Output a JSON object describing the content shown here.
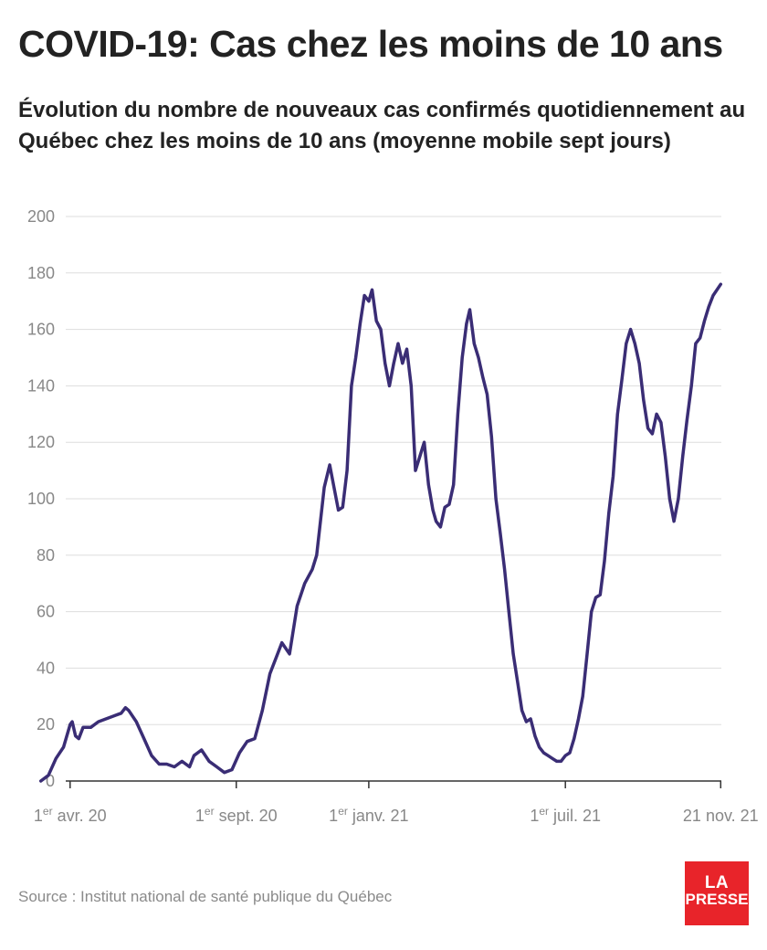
{
  "title": "COVID-19: Cas chez les moins de 10 ans",
  "subtitle": "Évolution du nombre de nouveaux cas confirmés quotidiennement au Québec chez les moins de 10 ans (moyenne mobile sept jours)",
  "source": "Source : Institut national de santé publique du Québec",
  "logo": {
    "line1": "LA",
    "line2": "PRESSE"
  },
  "colors": {
    "line": "#3a2d75",
    "grid": "#dddddd",
    "axis": "#333333",
    "tick_label": "#888888",
    "logo_bg": "#e8242a"
  },
  "chart_data": {
    "type": "line",
    "title": "COVID-19: Cas chez les moins de 10 ans",
    "xlabel": "",
    "ylabel": "",
    "ylim": [
      0,
      200
    ],
    "yticks": [
      0,
      20,
      40,
      60,
      80,
      100,
      120,
      140,
      160,
      180,
      200
    ],
    "xlim": [
      "2020-02-20",
      "2021-11-30"
    ],
    "grid": true,
    "xticks": [
      {
        "date": "2020-04-01",
        "sup": "er",
        "pre": "1",
        "post": " avr. 20"
      },
      {
        "date": "2020-09-01",
        "sup": "er",
        "pre": "1",
        "post": " sept. 20"
      },
      {
        "date": "2021-01-01",
        "sup": "er",
        "pre": "1",
        "post": " janv. 21"
      },
      {
        "date": "2021-07-01",
        "sup": "er",
        "pre": "1",
        "post": " juil. 21"
      },
      {
        "date": "2021-11-21",
        "sup": "",
        "pre": "",
        "post": "21 nov. 21"
      }
    ],
    "series": [
      {
        "values": [
          [
            "2020-03-05",
            0
          ],
          [
            "2020-03-12",
            2
          ],
          [
            "2020-03-19",
            8
          ],
          [
            "2020-03-26",
            12
          ],
          [
            "2020-04-01",
            20
          ],
          [
            "2020-04-03",
            21
          ],
          [
            "2020-04-06",
            16
          ],
          [
            "2020-04-09",
            15
          ],
          [
            "2020-04-13",
            19
          ],
          [
            "2020-04-20",
            19
          ],
          [
            "2020-04-27",
            21
          ],
          [
            "2020-05-04",
            22
          ],
          [
            "2020-05-11",
            23
          ],
          [
            "2020-05-18",
            24
          ],
          [
            "2020-05-22",
            26
          ],
          [
            "2020-05-25",
            25
          ],
          [
            "2020-06-01",
            21
          ],
          [
            "2020-06-08",
            15
          ],
          [
            "2020-06-15",
            9
          ],
          [
            "2020-06-22",
            6
          ],
          [
            "2020-06-29",
            6
          ],
          [
            "2020-07-06",
            5
          ],
          [
            "2020-07-13",
            7
          ],
          [
            "2020-07-20",
            5
          ],
          [
            "2020-07-24",
            9
          ],
          [
            "2020-07-31",
            11
          ],
          [
            "2020-08-07",
            7
          ],
          [
            "2020-08-14",
            5
          ],
          [
            "2020-08-21",
            3
          ],
          [
            "2020-08-28",
            4
          ],
          [
            "2020-09-04",
            10
          ],
          [
            "2020-09-11",
            14
          ],
          [
            "2020-09-18",
            15
          ],
          [
            "2020-09-25",
            25
          ],
          [
            "2020-10-02",
            38
          ],
          [
            "2020-10-09",
            45
          ],
          [
            "2020-10-13",
            49
          ],
          [
            "2020-10-20",
            45
          ],
          [
            "2020-10-27",
            62
          ],
          [
            "2020-11-03",
            70
          ],
          [
            "2020-11-10",
            75
          ],
          [
            "2020-11-14",
            80
          ],
          [
            "2020-11-21",
            104
          ],
          [
            "2020-11-26",
            112
          ],
          [
            "2020-11-30",
            104
          ],
          [
            "2020-12-04",
            96
          ],
          [
            "2020-12-08",
            97
          ],
          [
            "2020-12-12",
            110
          ],
          [
            "2020-12-16",
            140
          ],
          [
            "2020-12-20",
            150
          ],
          [
            "2020-12-24",
            162
          ],
          [
            "2020-12-28",
            172
          ],
          [
            "2021-01-01",
            170
          ],
          [
            "2021-01-04",
            174
          ],
          [
            "2021-01-08",
            163
          ],
          [
            "2021-01-12",
            160
          ],
          [
            "2021-01-16",
            148
          ],
          [
            "2021-01-20",
            140
          ],
          [
            "2021-01-24",
            148
          ],
          [
            "2021-01-28",
            155
          ],
          [
            "2021-02-01",
            148
          ],
          [
            "2021-02-05",
            153
          ],
          [
            "2021-02-09",
            140
          ],
          [
            "2021-02-13",
            110
          ],
          [
            "2021-02-17",
            115
          ],
          [
            "2021-02-21",
            120
          ],
          [
            "2021-02-25",
            105
          ],
          [
            "2021-03-01",
            96
          ],
          [
            "2021-03-04",
            92
          ],
          [
            "2021-03-08",
            90
          ],
          [
            "2021-03-12",
            97
          ],
          [
            "2021-03-16",
            98
          ],
          [
            "2021-03-20",
            105
          ],
          [
            "2021-03-24",
            130
          ],
          [
            "2021-03-28",
            150
          ],
          [
            "2021-04-01",
            162
          ],
          [
            "2021-04-04",
            167
          ],
          [
            "2021-04-08",
            155
          ],
          [
            "2021-04-12",
            150
          ],
          [
            "2021-04-16",
            143
          ],
          [
            "2021-04-20",
            137
          ],
          [
            "2021-04-24",
            122
          ],
          [
            "2021-04-28",
            100
          ],
          [
            "2021-05-02",
            88
          ],
          [
            "2021-05-06",
            75
          ],
          [
            "2021-05-10",
            60
          ],
          [
            "2021-05-14",
            45
          ],
          [
            "2021-05-18",
            35
          ],
          [
            "2021-05-22",
            25
          ],
          [
            "2021-05-26",
            21
          ],
          [
            "2021-05-30",
            22
          ],
          [
            "2021-06-03",
            16
          ],
          [
            "2021-06-07",
            12
          ],
          [
            "2021-06-11",
            10
          ],
          [
            "2021-06-15",
            9
          ],
          [
            "2021-06-19",
            8
          ],
          [
            "2021-06-23",
            7
          ],
          [
            "2021-06-27",
            7
          ],
          [
            "2021-07-01",
            9
          ],
          [
            "2021-07-05",
            10
          ],
          [
            "2021-07-09",
            15
          ],
          [
            "2021-07-13",
            22
          ],
          [
            "2021-07-17",
            30
          ],
          [
            "2021-07-21",
            45
          ],
          [
            "2021-07-25",
            60
          ],
          [
            "2021-07-29",
            65
          ],
          [
            "2021-08-02",
            66
          ],
          [
            "2021-08-06",
            78
          ],
          [
            "2021-08-10",
            95
          ],
          [
            "2021-08-14",
            108
          ],
          [
            "2021-08-18",
            130
          ],
          [
            "2021-08-22",
            142
          ],
          [
            "2021-08-26",
            155
          ],
          [
            "2021-08-30",
            160
          ],
          [
            "2021-09-03",
            155
          ],
          [
            "2021-09-07",
            148
          ],
          [
            "2021-09-11",
            135
          ],
          [
            "2021-09-15",
            125
          ],
          [
            "2021-09-19",
            123
          ],
          [
            "2021-09-23",
            130
          ],
          [
            "2021-09-27",
            127
          ],
          [
            "2021-10-01",
            115
          ],
          [
            "2021-10-05",
            100
          ],
          [
            "2021-10-09",
            92
          ],
          [
            "2021-10-13",
            100
          ],
          [
            "2021-10-17",
            115
          ],
          [
            "2021-10-21",
            128
          ],
          [
            "2021-10-25",
            140
          ],
          [
            "2021-10-29",
            155
          ],
          [
            "2021-11-02",
            157
          ],
          [
            "2021-11-06",
            163
          ],
          [
            "2021-11-10",
            168
          ],
          [
            "2021-11-14",
            172
          ],
          [
            "2021-11-21",
            176
          ]
        ]
      }
    ]
  }
}
